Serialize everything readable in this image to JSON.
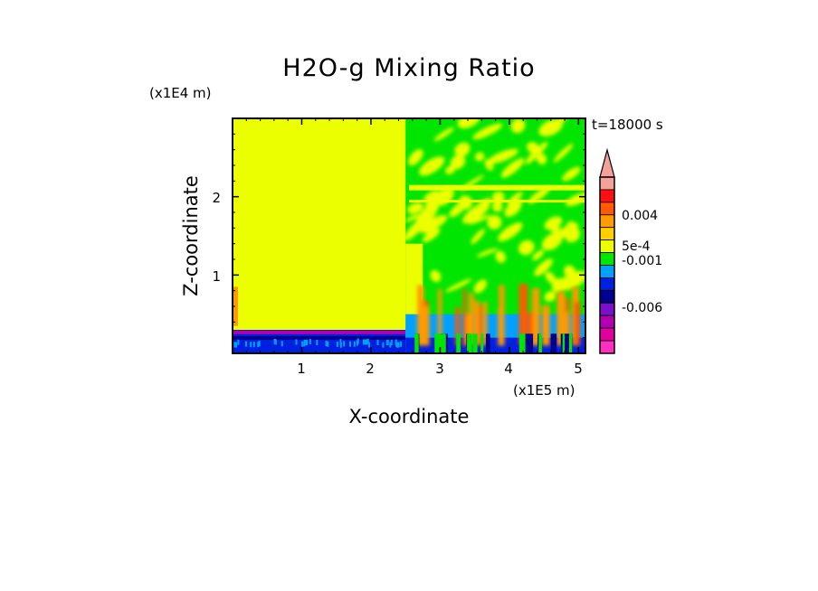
{
  "chart_data": {
    "type": "heatmap",
    "title": "H2O-g Mixing Ratio",
    "xlabel": "X-coordinate",
    "ylabel": "Z-coordinate",
    "x_unit_label": "(x1E5 m)",
    "y_unit_label": "(x1E4 m)",
    "time_label": "t=18000 s",
    "xlim": [
      0,
      5.1
    ],
    "ylim": [
      0,
      3.0
    ],
    "x_ticks": [
      1,
      2,
      3,
      4,
      5
    ],
    "y_ticks": [
      1,
      2
    ],
    "x_tick_labels": [
      "1",
      "2",
      "3",
      "4",
      "5"
    ],
    "y_tick_labels": [
      "1",
      "2"
    ],
    "colorbar": {
      "colors": [
        "#f5a09a",
        "#ff1010",
        "#ff5a00",
        "#ff9a00",
        "#ffcf00",
        "#ebff00",
        "#00e600",
        "#00a0ff",
        "#0020e0",
        "#000090",
        "#7a10c8",
        "#b000b0",
        "#e000a0",
        "#ff30c0"
      ],
      "labels": [
        "0.004",
        "5e-4",
        "-0.001",
        "-0.006"
      ],
      "label_values": [
        0.004,
        0.0005,
        -0.001,
        -0.006
      ]
    },
    "regions": [
      {
        "name": "dry upper domain (left)",
        "color": "#ebff00",
        "x": [
          0,
          2.5
        ],
        "z": [
          0.3,
          3.0
        ]
      },
      {
        "name": "low-level anomaly layer (left)",
        "color": "#0020e0",
        "x": [
          0,
          2.5
        ],
        "z": [
          0,
          0.3
        ]
      },
      {
        "name": "mixed upper domain (right)",
        "color": "#00e600",
        "x": [
          2.5,
          5.1
        ],
        "z": [
          0.5,
          3.0
        ]
      },
      {
        "name": "convective plumes (right)",
        "color": "#ff9a00",
        "x": [
          2.5,
          5.1
        ],
        "z": [
          0.1,
          0.9
        ]
      },
      {
        "name": "moist boundary layer (right)",
        "color": "#00a0ff",
        "x": [
          2.5,
          5.1
        ],
        "z": [
          0.2,
          0.5
        ]
      }
    ]
  }
}
